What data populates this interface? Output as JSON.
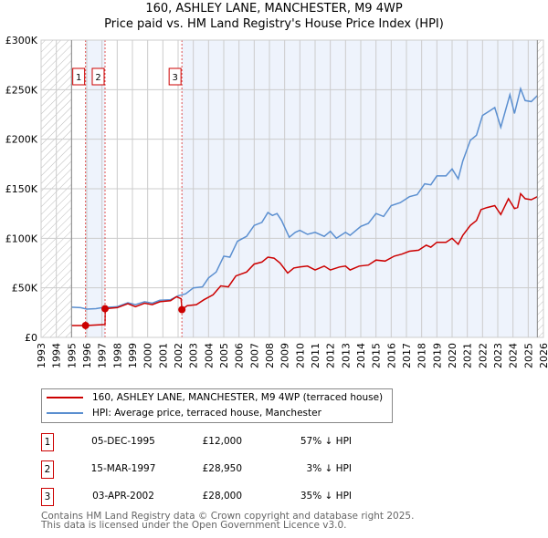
{
  "title": "160, ASHLEY LANE, MANCHESTER, M9 4WP",
  "subtitle": "Price paid vs. HM Land Registry's House Price Index (HPI)",
  "chart_data": {
    "type": "line",
    "xlim": [
      1993,
      2026
    ],
    "ylim": [
      0,
      300000
    ],
    "yticks": [
      0,
      50000,
      100000,
      150000,
      200000,
      250000,
      300000
    ],
    "ytick_labels": [
      "£0",
      "£50K",
      "£100K",
      "£150K",
      "£200K",
      "£250K",
      "£300K"
    ],
    "xticks": [
      "1993",
      "1994",
      "1995",
      "1996",
      "1997",
      "1998",
      "1999",
      "2000",
      "2001",
      "2002",
      "2003",
      "2004",
      "2005",
      "2006",
      "2007",
      "2008",
      "2009",
      "2010",
      "2011",
      "2012",
      "2013",
      "2014",
      "2015",
      "2016",
      "2017",
      "2018",
      "2019",
      "2020",
      "2021",
      "2022",
      "2023",
      "2024",
      "2025",
      "2026"
    ],
    "data_start": 1995,
    "data_end": 2025.6,
    "series": [
      {
        "name": "160, ASHLEY LANE, MANCHESTER, M9 4WP (terraced house)",
        "color": "#cc0000",
        "points": [
          [
            1995,
            12000
          ],
          [
            1995.92,
            12000
          ],
          [
            1997.2,
            13000
          ],
          [
            1997.21,
            28950
          ],
          [
            1998,
            30000
          ],
          [
            1998.7,
            34000
          ],
          [
            1999.2,
            31000
          ],
          [
            1999.8,
            34500
          ],
          [
            2000.3,
            33000
          ],
          [
            2000.8,
            36000
          ],
          [
            2001.5,
            37000
          ],
          [
            2001.9,
            41000
          ],
          [
            2002.2,
            39000
          ],
          [
            2002.25,
            28000
          ],
          [
            2002.6,
            32000
          ],
          [
            2003.2,
            33000
          ],
          [
            2003.7,
            38000
          ],
          [
            2004.3,
            43000
          ],
          [
            2004.8,
            52000
          ],
          [
            2005.3,
            51000
          ],
          [
            2005.8,
            62000
          ],
          [
            2006.5,
            66000
          ],
          [
            2007,
            74000
          ],
          [
            2007.5,
            76000
          ],
          [
            2007.9,
            81000
          ],
          [
            2008.3,
            80000
          ],
          [
            2008.7,
            75000
          ],
          [
            2009.2,
            65000
          ],
          [
            2009.6,
            70000
          ],
          [
            2010,
            71000
          ],
          [
            2010.5,
            72000
          ],
          [
            2011,
            68000
          ],
          [
            2011.6,
            72000
          ],
          [
            2012,
            68000
          ],
          [
            2012.6,
            71000
          ],
          [
            2013,
            72000
          ],
          [
            2013.3,
            68000
          ],
          [
            2013.9,
            72000
          ],
          [
            2014.5,
            73000
          ],
          [
            2015,
            78000
          ],
          [
            2015.6,
            77000
          ],
          [
            2016.2,
            82000
          ],
          [
            2016.7,
            84000
          ],
          [
            2017.2,
            87000
          ],
          [
            2017.8,
            88000
          ],
          [
            2018.3,
            93000
          ],
          [
            2018.6,
            91000
          ],
          [
            2019,
            96000
          ],
          [
            2019.6,
            96000
          ],
          [
            2020,
            100000
          ],
          [
            2020.4,
            94000
          ],
          [
            2020.7,
            103000
          ],
          [
            2021.2,
            113000
          ],
          [
            2021.6,
            118000
          ],
          [
            2021.9,
            129000
          ],
          [
            2022.3,
            131000
          ],
          [
            2022.8,
            133000
          ],
          [
            2023.2,
            124000
          ],
          [
            2023.7,
            140000
          ],
          [
            2024.1,
            130000
          ],
          [
            2024.3,
            131000
          ],
          [
            2024.5,
            145000
          ],
          [
            2024.8,
            140000
          ],
          [
            2025.2,
            139000
          ],
          [
            2025.6,
            142000
          ]
        ]
      },
      {
        "name": "HPI: Average price, terraced house, Manchester",
        "color": "#5b8fd0",
        "points": [
          [
            1995,
            30500
          ],
          [
            1995.6,
            30000
          ],
          [
            1996,
            28500
          ],
          [
            1996.6,
            29000
          ],
          [
            1997,
            30000
          ],
          [
            1997.5,
            30500
          ],
          [
            1998,
            31000
          ],
          [
            1998.7,
            35000
          ],
          [
            1999.2,
            33000
          ],
          [
            1999.8,
            36000
          ],
          [
            2000.3,
            34500
          ],
          [
            2000.8,
            37500
          ],
          [
            2001.5,
            38000
          ],
          [
            2002,
            42000
          ],
          [
            2002.5,
            44000
          ],
          [
            2003,
            50000
          ],
          [
            2003.6,
            51000
          ],
          [
            2004,
            60000
          ],
          [
            2004.5,
            66000
          ],
          [
            2005,
            82000
          ],
          [
            2005.4,
            81000
          ],
          [
            2005.9,
            97000
          ],
          [
            2006.5,
            102000
          ],
          [
            2007,
            113000
          ],
          [
            2007.5,
            116000
          ],
          [
            2007.9,
            126000
          ],
          [
            2008.2,
            123000
          ],
          [
            2008.5,
            125000
          ],
          [
            2008.8,
            118000
          ],
          [
            2009.3,
            101000
          ],
          [
            2009.7,
            106000
          ],
          [
            2010,
            108000
          ],
          [
            2010.5,
            104000
          ],
          [
            2011,
            106000
          ],
          [
            2011.6,
            102000
          ],
          [
            2012,
            107000
          ],
          [
            2012.4,
            100000
          ],
          [
            2013,
            106000
          ],
          [
            2013.3,
            103000
          ],
          [
            2014,
            112000
          ],
          [
            2014.5,
            115000
          ],
          [
            2015,
            125000
          ],
          [
            2015.5,
            122000
          ],
          [
            2016,
            133000
          ],
          [
            2016.6,
            136000
          ],
          [
            2017.2,
            142000
          ],
          [
            2017.7,
            144000
          ],
          [
            2018.2,
            155000
          ],
          [
            2018.6,
            154000
          ],
          [
            2019,
            163000
          ],
          [
            2019.6,
            163000
          ],
          [
            2020,
            170000
          ],
          [
            2020.4,
            160000
          ],
          [
            2020.7,
            178000
          ],
          [
            2021.2,
            199000
          ],
          [
            2021.6,
            204000
          ],
          [
            2022,
            224000
          ],
          [
            2022.5,
            229000
          ],
          [
            2022.8,
            232000
          ],
          [
            2023.2,
            212000
          ],
          [
            2023.8,
            245000
          ],
          [
            2024.1,
            226000
          ],
          [
            2024.5,
            251000
          ],
          [
            2024.8,
            239000
          ],
          [
            2025.2,
            238000
          ],
          [
            2025.6,
            244000
          ]
        ]
      }
    ],
    "sales": [
      {
        "label": "1",
        "x": 1995.92,
        "y": 12000
      },
      {
        "label": "2",
        "x": 1997.2,
        "y": 28950
      },
      {
        "label": "3",
        "x": 2002.25,
        "y": 28000
      }
    ],
    "legend_position": "below"
  },
  "legend": [
    {
      "label": "160, ASHLEY LANE, MANCHESTER, M9 4WP (terraced house)",
      "color": "#cc0000"
    },
    {
      "label": "HPI: Average price, terraced house, Manchester",
      "color": "#5b8fd0"
    }
  ],
  "transactions": [
    {
      "num": "1",
      "date": "05-DEC-1995",
      "price": "£12,000",
      "hpi": "57% ↓ HPI"
    },
    {
      "num": "2",
      "date": "15-MAR-1997",
      "price": "£28,950",
      "hpi": "3% ↓ HPI"
    },
    {
      "num": "3",
      "date": "03-APR-2002",
      "price": "£28,000",
      "hpi": "35% ↓ HPI"
    }
  ],
  "footer": {
    "line1": "Contains HM Land Registry data © Crown copyright and database right 2025.",
    "line2": "This data is licensed under the Open Government Licence v3.0."
  }
}
